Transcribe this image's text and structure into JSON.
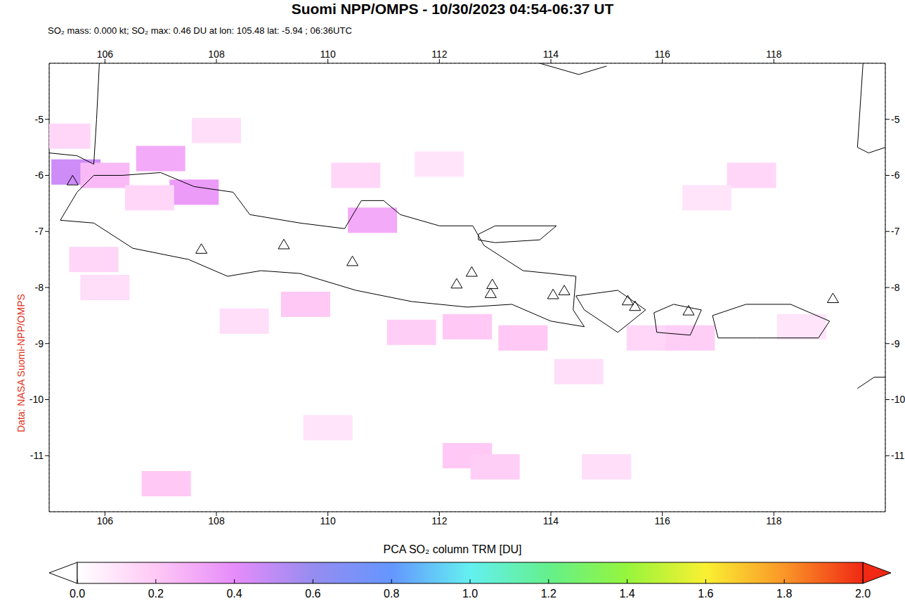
{
  "chart_data": {
    "type": "map",
    "title": "Suomi NPP/OMPS - 10/30/2023 04:54-06:37 UT",
    "subtitle": "SO₂ mass: 0.000 kt; SO₂ max: 0.46 DU at lon: 105.48 lat: -5.94 ; 06:36UTC",
    "side_label": "Data: NASA Suomi-NPP/OMPS",
    "xlim": [
      105,
      120
    ],
    "xticks": [
      106,
      108,
      110,
      112,
      114,
      116,
      118
    ],
    "ylim": [
      -12,
      -4
    ],
    "yticks": [
      -5,
      -6,
      -7,
      -8,
      -9,
      -10,
      -11
    ],
    "grid": true,
    "cells": [
      {
        "lon": 105.48,
        "lat": -5.94,
        "value": 0.46
      },
      {
        "lon": 105.3,
        "lat": -5.3,
        "value": 0.15
      },
      {
        "lon": 106.0,
        "lat": -6.0,
        "value": 0.25
      },
      {
        "lon": 107.0,
        "lat": -5.7,
        "value": 0.3
      },
      {
        "lon": 107.6,
        "lat": -6.3,
        "value": 0.35
      },
      {
        "lon": 106.8,
        "lat": -6.4,
        "value": 0.15
      },
      {
        "lon": 108.0,
        "lat": -5.2,
        "value": 0.12
      },
      {
        "lon": 110.8,
        "lat": -6.8,
        "value": 0.3
      },
      {
        "lon": 110.5,
        "lat": -6.0,
        "value": 0.15
      },
      {
        "lon": 112.0,
        "lat": -5.8,
        "value": 0.1
      },
      {
        "lon": 112.5,
        "lat": -8.7,
        "value": 0.2
      },
      {
        "lon": 111.5,
        "lat": -8.8,
        "value": 0.18
      },
      {
        "lon": 109.6,
        "lat": -8.3,
        "value": 0.2
      },
      {
        "lon": 108.5,
        "lat": -8.6,
        "value": 0.12
      },
      {
        "lon": 113.5,
        "lat": -8.9,
        "value": 0.2
      },
      {
        "lon": 115.8,
        "lat": -8.9,
        "value": 0.15
      },
      {
        "lon": 116.5,
        "lat": -8.9,
        "value": 0.18
      },
      {
        "lon": 117.6,
        "lat": -6.0,
        "value": 0.15
      },
      {
        "lon": 116.8,
        "lat": -6.4,
        "value": 0.1
      },
      {
        "lon": 118.5,
        "lat": -8.7,
        "value": 0.1
      },
      {
        "lon": 112.5,
        "lat": -11.0,
        "value": 0.2
      },
      {
        "lon": 113.0,
        "lat": -11.2,
        "value": 0.18
      },
      {
        "lon": 115.0,
        "lat": -11.2,
        "value": 0.12
      },
      {
        "lon": 107.1,
        "lat": -11.5,
        "value": 0.2
      },
      {
        "lon": 105.8,
        "lat": -7.5,
        "value": 0.15
      },
      {
        "lon": 106.0,
        "lat": -8.0,
        "value": 0.12
      },
      {
        "lon": 110.0,
        "lat": -10.5,
        "value": 0.1
      },
      {
        "lon": 114.5,
        "lat": -9.5,
        "value": 0.12
      }
    ],
    "volcanoes": {
      "marker": "triangle",
      "color": "#000000",
      "points": [
        {
          "lon": 105.42,
          "lat": -6.1
        },
        {
          "lon": 107.73,
          "lat": -7.32
        },
        {
          "lon": 109.21,
          "lat": -7.24
        },
        {
          "lon": 110.44,
          "lat": -7.54
        },
        {
          "lon": 112.31,
          "lat": -7.94
        },
        {
          "lon": 112.58,
          "lat": -7.73
        },
        {
          "lon": 112.95,
          "lat": -7.95
        },
        {
          "lon": 112.92,
          "lat": -8.11
        },
        {
          "lon": 114.04,
          "lat": -8.13
        },
        {
          "lon": 114.24,
          "lat": -8.06
        },
        {
          "lon": 115.38,
          "lat": -8.24
        },
        {
          "lon": 115.51,
          "lat": -8.34
        },
        {
          "lon": 116.47,
          "lat": -8.42
        },
        {
          "lon": 119.06,
          "lat": -8.2
        }
      ]
    },
    "coastlines": {
      "color": "#000000",
      "lines": [
        [
          [
            105.2,
            -6.8
          ],
          [
            105.5,
            -6.3
          ],
          [
            105.8,
            -6.0
          ],
          [
            106.3,
            -6.0
          ],
          [
            107.0,
            -5.95
          ],
          [
            107.6,
            -6.2
          ],
          [
            108.3,
            -6.3
          ],
          [
            108.6,
            -6.7
          ],
          [
            109.5,
            -6.85
          ],
          [
            110.3,
            -6.95
          ],
          [
            110.6,
            -6.45
          ],
          [
            111.0,
            -6.45
          ],
          [
            111.3,
            -6.7
          ],
          [
            112.0,
            -6.9
          ],
          [
            112.6,
            -6.9
          ],
          [
            112.8,
            -7.25
          ],
          [
            113.5,
            -7.7
          ],
          [
            114.0,
            -7.75
          ],
          [
            114.45,
            -7.8
          ],
          [
            114.4,
            -8.4
          ],
          [
            114.6,
            -8.7
          ],
          [
            114.0,
            -8.6
          ],
          [
            113.3,
            -8.3
          ],
          [
            112.5,
            -8.35
          ],
          [
            111.5,
            -8.25
          ],
          [
            110.5,
            -8.05
          ],
          [
            109.5,
            -7.75
          ],
          [
            108.8,
            -7.7
          ],
          [
            108.2,
            -7.8
          ],
          [
            107.5,
            -7.5
          ],
          [
            106.5,
            -7.3
          ],
          [
            105.8,
            -6.85
          ],
          [
            105.2,
            -6.8
          ]
        ],
        [
          [
            112.7,
            -7.05
          ],
          [
            113.0,
            -6.9
          ],
          [
            114.1,
            -6.9
          ],
          [
            113.8,
            -7.15
          ],
          [
            113.0,
            -7.2
          ],
          [
            112.7,
            -7.15
          ],
          [
            112.7,
            -7.05
          ]
        ],
        [
          [
            105.9,
            -4.0
          ],
          [
            105.85,
            -5.0
          ],
          [
            105.8,
            -5.8
          ],
          [
            105.5,
            -5.65
          ],
          [
            105.0,
            -5.6
          ]
        ],
        [
          [
            114.45,
            -8.15
          ],
          [
            115.2,
            -8.05
          ],
          [
            115.7,
            -8.4
          ],
          [
            115.2,
            -8.8
          ],
          [
            114.6,
            -8.4
          ],
          [
            114.45,
            -8.15
          ]
        ],
        [
          [
            115.85,
            -8.45
          ],
          [
            116.2,
            -8.3
          ],
          [
            116.7,
            -8.4
          ],
          [
            116.5,
            -8.85
          ],
          [
            115.9,
            -8.8
          ],
          [
            115.85,
            -8.45
          ]
        ],
        [
          [
            116.9,
            -8.5
          ],
          [
            117.5,
            -8.3
          ],
          [
            118.3,
            -8.3
          ],
          [
            119.0,
            -8.6
          ],
          [
            118.8,
            -8.9
          ],
          [
            117.7,
            -8.9
          ],
          [
            117.0,
            -8.9
          ],
          [
            116.9,
            -8.5
          ]
        ],
        [
          [
            113.8,
            -4.0
          ],
          [
            114.5,
            -4.2
          ],
          [
            115.0,
            -4.05
          ]
        ],
        [
          [
            119.6,
            -4.0
          ],
          [
            119.5,
            -5.5
          ],
          [
            119.7,
            -5.6
          ],
          [
            120.0,
            -5.5
          ]
        ],
        [
          [
            119.5,
            -9.8
          ],
          [
            119.8,
            -9.6
          ],
          [
            120.0,
            -9.6
          ]
        ]
      ]
    },
    "colorbar": {
      "label": "PCA SO₂ column TRM [DU]",
      "range": [
        0,
        2
      ],
      "ticks": [
        {
          "value": 0,
          "label": "0.0"
        },
        {
          "value": 0.2,
          "label": "0.2"
        },
        {
          "value": 0.4,
          "label": "0.4"
        },
        {
          "value": 0.6,
          "label": "0.6"
        },
        {
          "value": 0.8,
          "label": "0.8"
        },
        {
          "value": 1.0,
          "label": "1.0"
        },
        {
          "value": 1.2,
          "label": "1.2"
        },
        {
          "value": 1.4,
          "label": "1.4"
        },
        {
          "value": 1.6,
          "label": "1.6"
        },
        {
          "value": 1.8,
          "label": "1.8"
        },
        {
          "value": 2.0,
          "label": "2.0"
        }
      ]
    }
  }
}
